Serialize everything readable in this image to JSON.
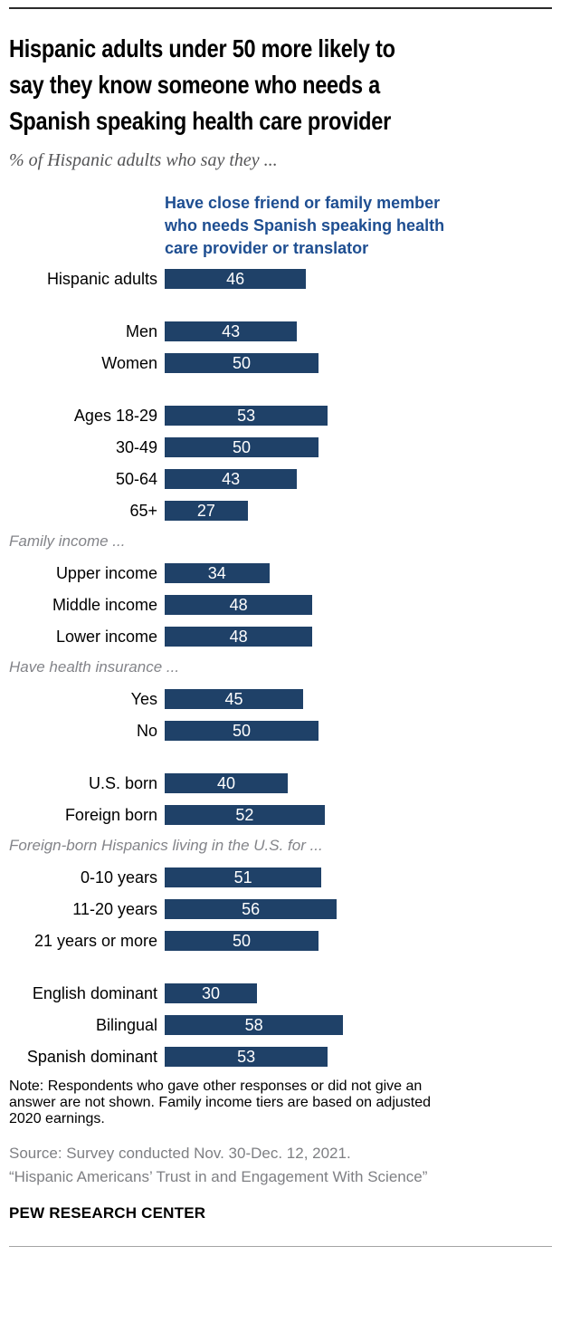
{
  "header": {
    "title_lines": [
      "Hispanic adults under 50 more likely to",
      "say they know someone who needs a",
      "Spanish speaking health care provider"
    ],
    "subtitle": "% of Hispanic adults who say they ..."
  },
  "chart_data": {
    "type": "bar",
    "orientation": "horizontal",
    "xlim": [
      0,
      100
    ],
    "grid": false,
    "bar_color": "#1F4168",
    "value_label_color": "#FFFFFF",
    "column_header_color": "#1E4E91",
    "column_header_lines": [
      "Have close friend or family member",
      "who needs Spanish speaking health",
      "care provider or translator"
    ],
    "groups": [
      {
        "section": null,
        "rows": [
          {
            "label": "Hispanic adults",
            "value": 46
          }
        ]
      },
      {
        "section": null,
        "rows": [
          {
            "label": "Men",
            "value": 43
          },
          {
            "label": "Women",
            "value": 50
          }
        ]
      },
      {
        "section": null,
        "rows": [
          {
            "label": "Ages 18-29",
            "value": 53
          },
          {
            "label": "30-49",
            "value": 50
          },
          {
            "label": "50-64",
            "value": 43
          },
          {
            "label": "65+",
            "value": 27
          }
        ]
      },
      {
        "section": "Family income ...",
        "rows": [
          {
            "label": "Upper income",
            "value": 34
          },
          {
            "label": "Middle income",
            "value": 48
          },
          {
            "label": "Lower income",
            "value": 48
          }
        ]
      },
      {
        "section": "Have health insurance ...",
        "rows": [
          {
            "label": "Yes",
            "value": 45
          },
          {
            "label": "No",
            "value": 50
          }
        ]
      },
      {
        "section": null,
        "rows": [
          {
            "label": "U.S. born",
            "value": 40
          },
          {
            "label": "Foreign born",
            "value": 52
          }
        ]
      },
      {
        "section": "Foreign-born Hispanics living in the U.S. for ...",
        "rows": [
          {
            "label": "0-10 years",
            "value": 51
          },
          {
            "label": "11-20 years",
            "value": 56
          },
          {
            "label": "21 years or more",
            "value": 50
          }
        ]
      },
      {
        "section": null,
        "rows": [
          {
            "label": "English dominant",
            "value": 30
          },
          {
            "label": "Bilingual",
            "value": 58
          },
          {
            "label": "Spanish dominant",
            "value": 53
          }
        ]
      }
    ]
  },
  "footer": {
    "note_lines": [
      "Note: Respondents who gave other responses or did not give an",
      "answer are not shown. Family income tiers are based on adjusted",
      "2020 earnings."
    ],
    "source": "Source: Survey conducted Nov. 30-Dec. 12, 2021.",
    "citation": "“Hispanic Americans’ Trust in and Engagement With Science”",
    "brand": "PEW RESEARCH CENTER"
  }
}
